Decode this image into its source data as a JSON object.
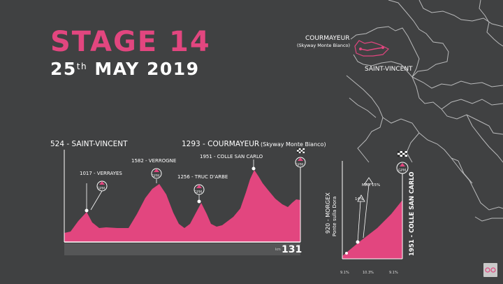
{
  "title": {
    "stage": "STAGE 14",
    "day": "25",
    "day_suffix": "th",
    "month_year": "MAY 2019"
  },
  "map": {
    "finish_name": "COURMAYEUR",
    "finish_sub": "(Skyway Monte Bianco)",
    "start_name": "SAINT-VINCENT"
  },
  "profile": {
    "start_label": "524 - SAINT-VINCENT",
    "finish_label": "1293 - COURMAYEUR",
    "finish_sub": "(Skyway Monte Bianco)",
    "climbs": [
      {
        "label": "1017 - VERRAYES",
        "badge": "GPM"
      },
      {
        "label": "1582 - VERROGNE",
        "badge": "GPM"
      },
      {
        "label": "1256 - TRUC D'ARBE",
        "badge": "GPM"
      },
      {
        "label": "1951 - COLLE SAN CARLO",
        "badge": "GPM"
      }
    ],
    "final_badge": "GPM",
    "km_unit": "km",
    "distance": "131"
  },
  "climb_detail": {
    "start_label": "920 - MORGEX",
    "start_sub": "Ponte sulla Dora",
    "summit_label": "1951 - COLLE SAN CARLO",
    "badge": "GPM",
    "grade_label": "14%",
    "max_label": "MAX 15%",
    "segment_grades": [
      "9.1%",
      "10.3%",
      "9.1%"
    ]
  },
  "colors": {
    "background": "#404142",
    "accent": "#e2467f",
    "profile_fill": "#e2467f",
    "borders": "#b9babb"
  },
  "icons": [
    "checkered-flag-icon",
    "gpm-mountain-icon",
    "giro-logo-icon"
  ]
}
